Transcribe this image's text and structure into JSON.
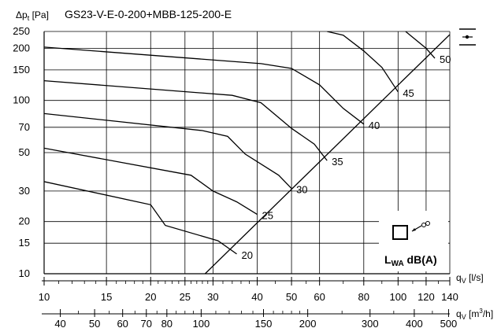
{
  "chart_data": {
    "type": "line",
    "title": "GS23-V-E-0-200+MBB-125-200-E",
    "ylabel_main": "Δp",
    "ylabel_sub": "t",
    "ylabel_unit": "[Pa]",
    "x_scale": "log",
    "y_scale": "log",
    "xlim": [
      10,
      140
    ],
    "ylim": [
      10,
      250
    ],
    "grid": true,
    "x_axis": {
      "label_main": "q",
      "label_sub": "V",
      "label_unit": "[l/s]",
      "tick_labels": [
        "10",
        "15",
        "20",
        "25",
        "30",
        "40",
        "50",
        "60",
        "80",
        "100",
        "120",
        "140"
      ]
    },
    "x2_axis": {
      "label_main": "q",
      "label_sub": "V",
      "label_unit": "[m",
      "label_sup": "3",
      "label_tail": "/h]",
      "tick_labels": [
        "40",
        "50",
        "60",
        "70",
        "80",
        "100",
        "150",
        "200",
        "300",
        "400",
        "500"
      ]
    },
    "y_axis": {
      "tick_labels": [
        "10",
        "15",
        "20",
        "30",
        "50",
        "70",
        "100",
        "150",
        "200",
        "250"
      ]
    },
    "system_line": [
      [
        28.5,
        10
      ],
      [
        140,
        240
      ]
    ],
    "series": [
      {
        "name": "20",
        "points": [
          [
            10,
            34
          ],
          [
            20,
            25
          ],
          [
            22,
            19
          ],
          [
            31,
            15.5
          ],
          [
            35,
            13
          ]
        ]
      },
      {
        "name": "25",
        "points": [
          [
            10,
            53
          ],
          [
            26,
            37
          ],
          [
            30,
            30
          ],
          [
            35,
            26
          ],
          [
            40,
            22
          ]
        ]
      },
      {
        "name": "30",
        "points": [
          [
            10,
            84
          ],
          [
            28,
            67
          ],
          [
            33,
            62
          ],
          [
            37,
            49
          ],
          [
            46,
            37
          ],
          [
            50,
            31
          ]
        ]
      },
      {
        "name": "35",
        "points": [
          [
            10,
            130
          ],
          [
            34,
            107
          ],
          [
            41,
            97
          ],
          [
            50,
            69
          ],
          [
            58,
            56
          ],
          [
            63,
            45
          ]
        ]
      },
      {
        "name": "40",
        "points": [
          [
            10,
            203
          ],
          [
            41,
            163
          ],
          [
            50,
            153
          ],
          [
            60,
            123
          ],
          [
            70,
            90
          ],
          [
            80,
            73
          ]
        ]
      },
      {
        "name": "45",
        "points": [
          [
            63,
            250
          ],
          [
            70,
            238
          ],
          [
            80,
            193
          ],
          [
            90,
            155
          ],
          [
            100,
            112
          ]
        ]
      },
      {
        "name": "50",
        "points": [
          [
            105,
            250
          ],
          [
            120,
            200
          ],
          [
            127,
            175
          ]
        ]
      }
    ],
    "legend_text_main": "L",
    "legend_text_sub": "WA",
    "legend_text_tail": " dB(A)"
  }
}
